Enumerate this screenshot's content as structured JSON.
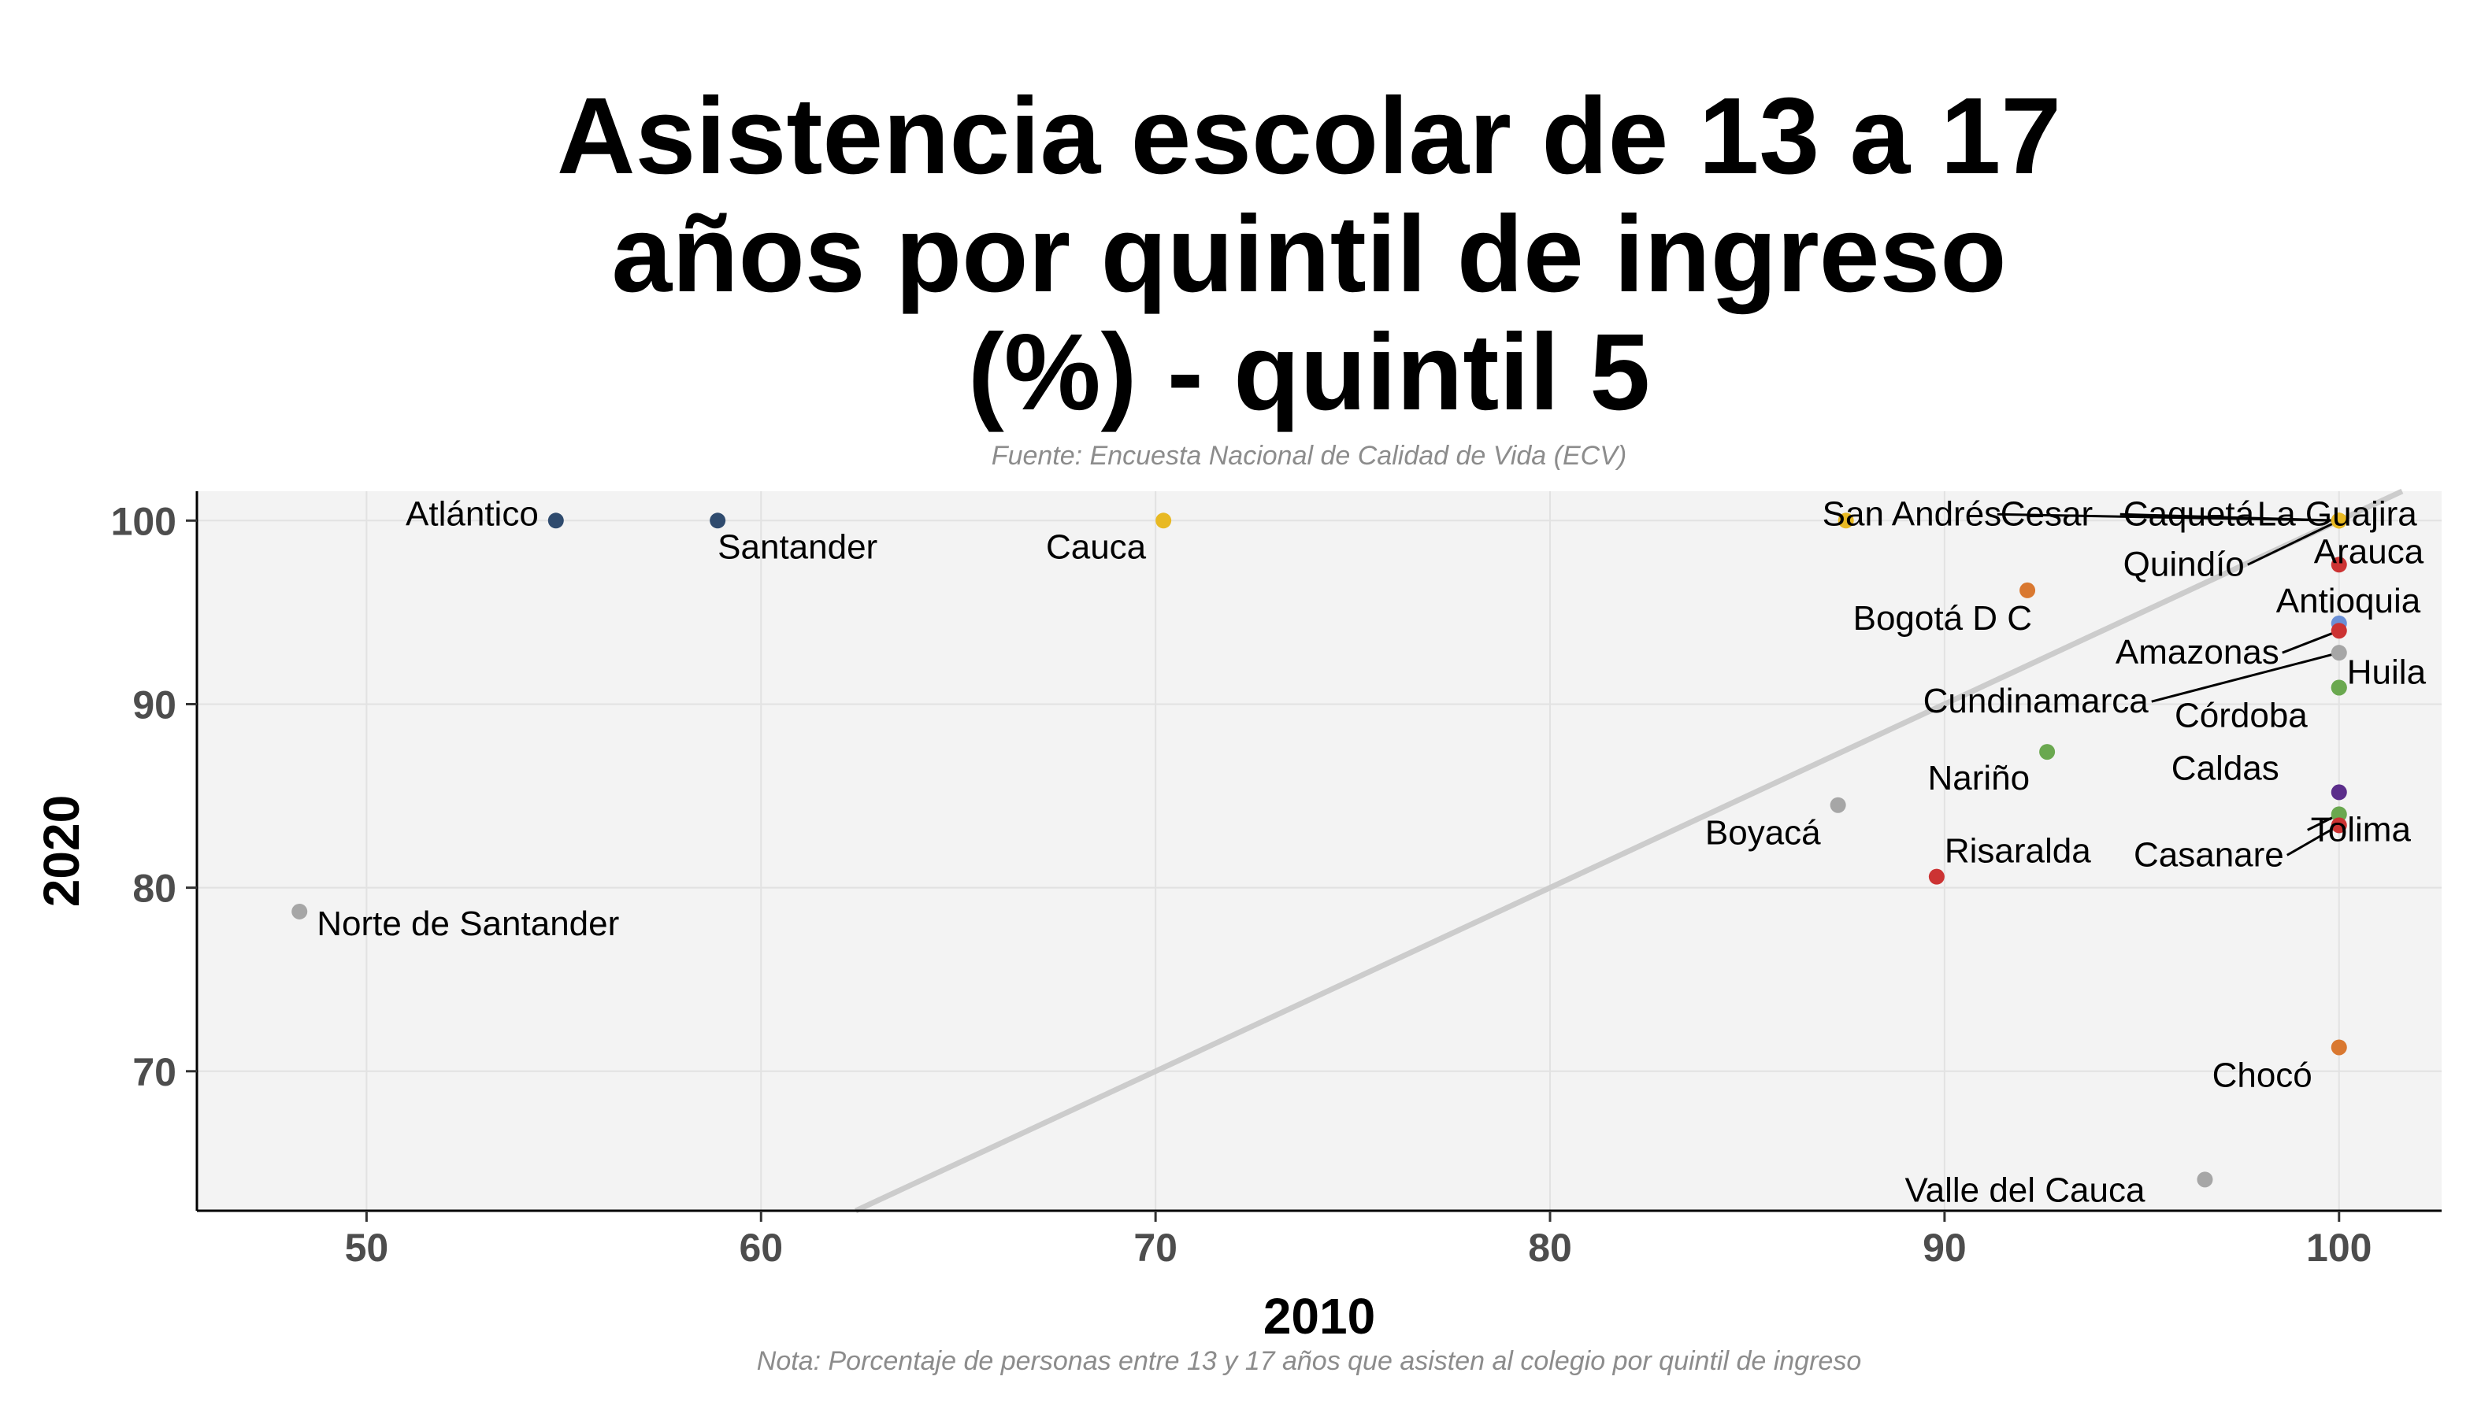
{
  "chart_data": {
    "type": "scatter",
    "title_lines": [
      "Asistencia escolar de 13 a 17",
      "años por quintil de ingreso",
      "(%) - quintil 5"
    ],
    "subtitle": "Fuente: Encuesta Nacional de Calidad de Vida (ECV)",
    "caption": "Nota: Porcentaje de personas entre 13 y 17 años que asisten al colegio por quintil de ingreso",
    "xlabel": "2010",
    "ylabel": "2020",
    "xlim": [
      45.7,
      102.6
    ],
    "ylim": [
      62.4,
      101.6
    ],
    "xticks": [
      50,
      60,
      70,
      80,
      90,
      100
    ],
    "yticks": [
      70,
      80,
      90,
      100
    ],
    "grid": true,
    "reference_line": "y = x",
    "points": [
      {
        "label": "Atlántico",
        "x": 54.8,
        "y": 100.0,
        "color": "#2f4b6e"
      },
      {
        "label": "Santander",
        "x": 58.9,
        "y": 100.0,
        "color": "#2f4b6e"
      },
      {
        "label": "Cauca",
        "x": 70.2,
        "y": 100.0,
        "color": "#e8b923"
      },
      {
        "label": "Norte de Santander",
        "x": 48.3,
        "y": 78.7,
        "color": "#a6a6a6"
      },
      {
        "label": "San Andrés",
        "x": 87.5,
        "y": 100.0,
        "color": "#e8b923"
      },
      {
        "label": "Cesar",
        "x": 100.0,
        "y": 100.0,
        "color": "#e8b923"
      },
      {
        "label": "Caquetá",
        "x": 100.0,
        "y": 100.0,
        "color": "#e8b923"
      },
      {
        "label": "La Guajira",
        "x": 100.0,
        "y": 100.0,
        "color": "#e8b923"
      },
      {
        "label": "Quindío",
        "x": 100.0,
        "y": 100.0,
        "color": "#e8b923"
      },
      {
        "label": "Arauca",
        "x": 100.0,
        "y": 97.6,
        "color": "#cc3333"
      },
      {
        "label": "Bogotá D C",
        "x": 92.1,
        "y": 96.2,
        "color": "#d97830"
      },
      {
        "label": "Antioquia",
        "x": 100.0,
        "y": 94.4,
        "color": "#6a8fd6"
      },
      {
        "label": "Amazonas",
        "x": 100.0,
        "y": 94.0,
        "color": "#cc3333"
      },
      {
        "label": "Cundinamarca",
        "x": 100.0,
        "y": 92.8,
        "color": "#a6a6a6"
      },
      {
        "label": "Huila",
        "x": 100.0,
        "y": 90.9,
        "color": "#6aa84f"
      },
      {
        "label": "Córdoba",
        "x": 100.0,
        "y": 90.9,
        "color": "#6aa84f"
      },
      {
        "label": "Nariño",
        "x": 92.6,
        "y": 87.4,
        "color": "#6aa84f"
      },
      {
        "label": "Caldas",
        "x": 100.0,
        "y": 85.2,
        "color": "#5b2d8a"
      },
      {
        "label": "Tolima",
        "x": 100.0,
        "y": 84.0,
        "color": "#6aa84f"
      },
      {
        "label": "Casanare",
        "x": 100.0,
        "y": 83.4,
        "color": "#cc3333"
      },
      {
        "label": "Boyacá",
        "x": 87.3,
        "y": 84.5,
        "color": "#a6a6a6"
      },
      {
        "label": "Risaralda",
        "x": 89.8,
        "y": 80.6,
        "color": "#cc3333"
      },
      {
        "label": "Chocó",
        "x": 100.0,
        "y": 71.3,
        "color": "#d97830"
      },
      {
        "label": "Valle del Cauca",
        "x": 96.6,
        "y": 64.1,
        "color": "#a6a6a6"
      }
    ]
  }
}
